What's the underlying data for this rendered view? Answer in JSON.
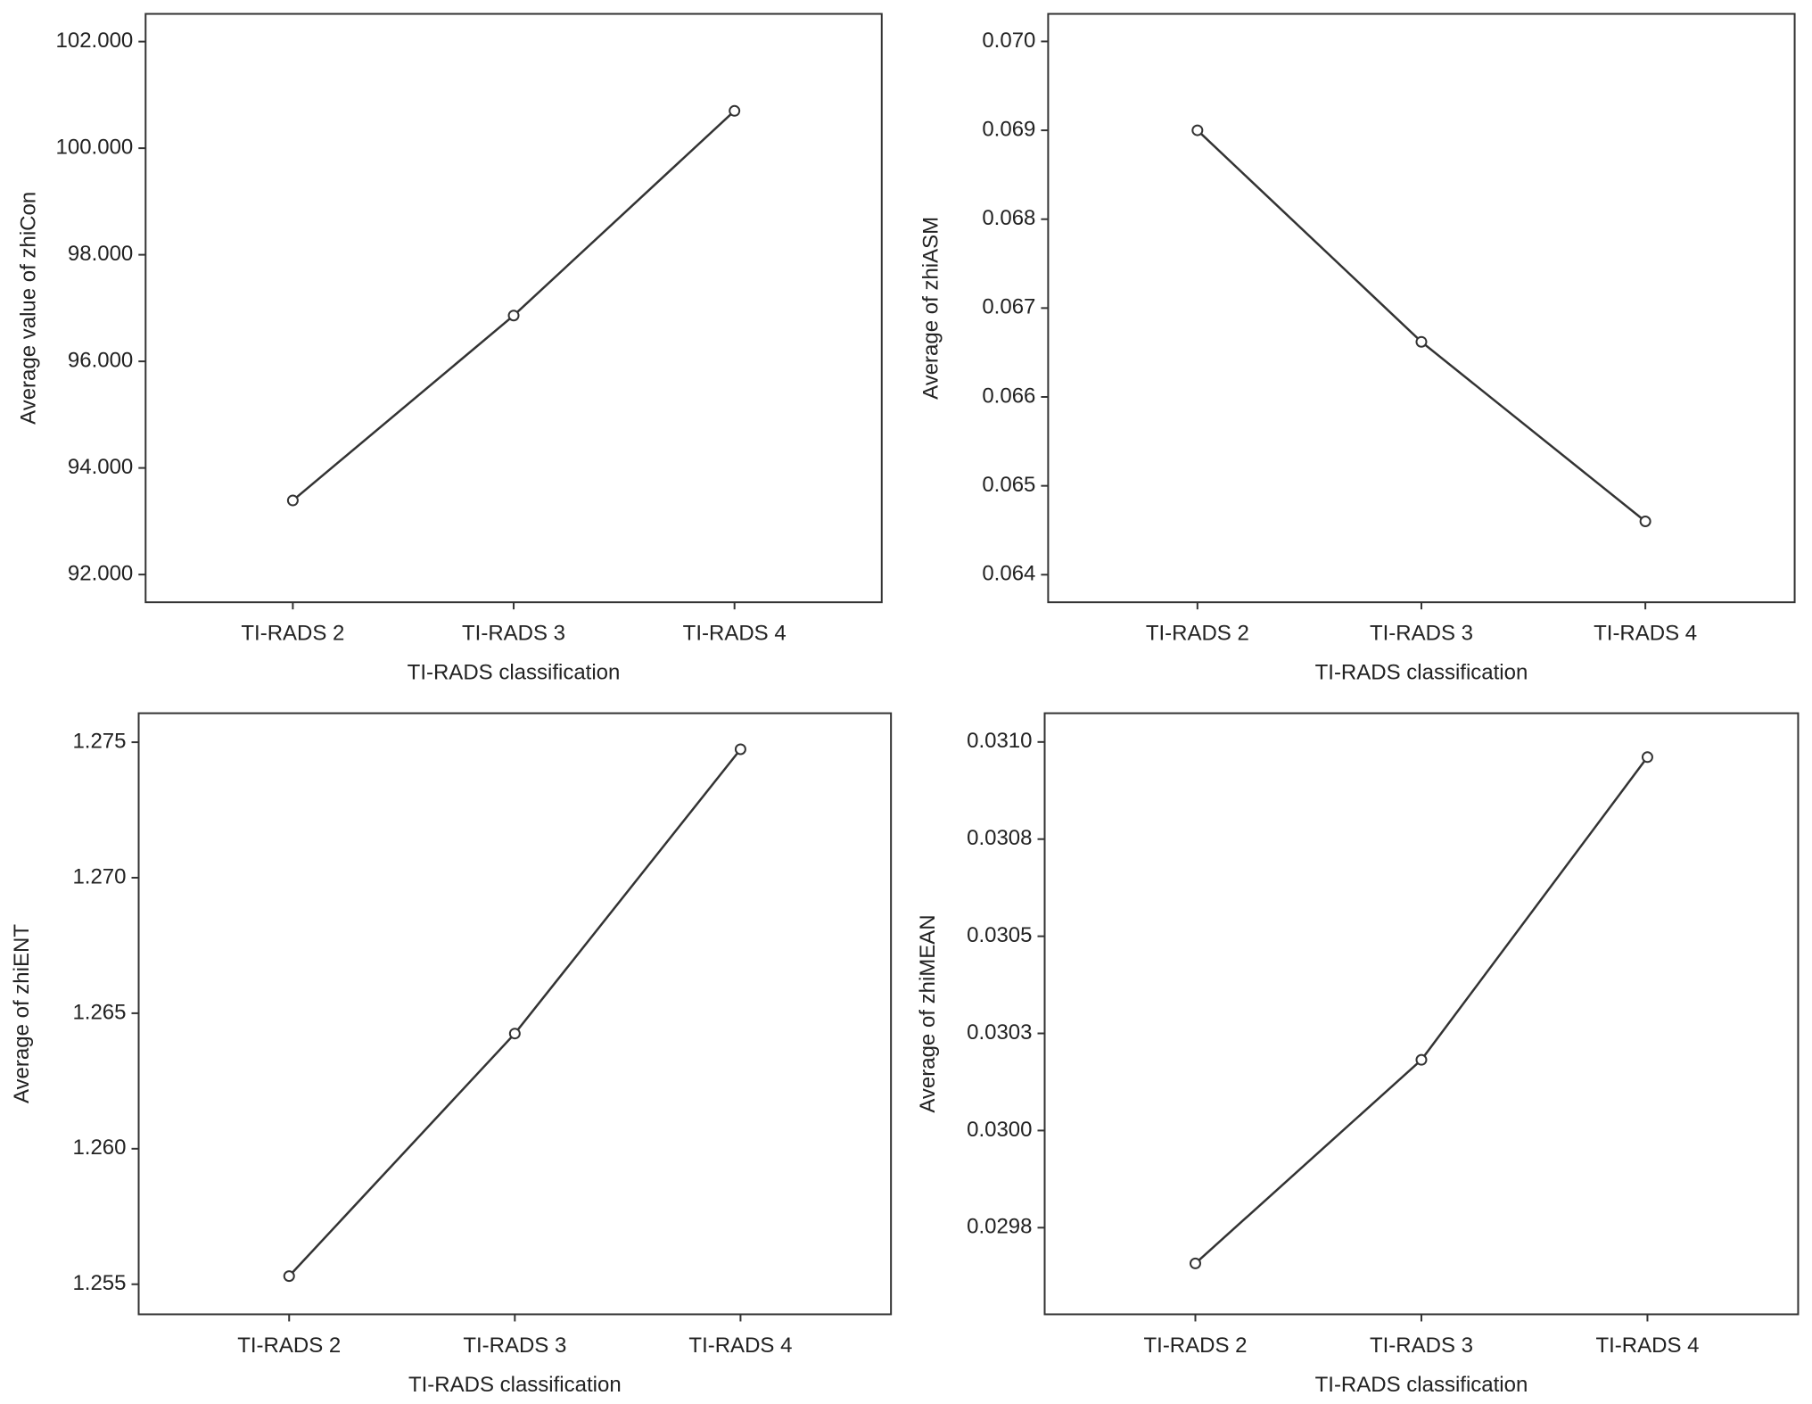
{
  "chart_data": [
    {
      "type": "line",
      "x_label": "TI-RADS classification",
      "y_label": "Average value of zhiCon",
      "categories": [
        "TI-RADS 2",
        "TI-RADS 3",
        "TI-RADS 4"
      ],
      "values": [
        93.39,
        96.86,
        100.7
      ],
      "color": "#333333",
      "ylim": [
        91.48,
        102.52
      ],
      "yticks": [
        {
          "value": 92,
          "label": "92.000"
        },
        {
          "value": 94,
          "label": "94.000"
        },
        {
          "value": 96,
          "label": "96.000"
        },
        {
          "value": 98,
          "label": "98.000"
        },
        {
          "value": 100,
          "label": "100.000"
        },
        {
          "value": 102,
          "label": "102.000"
        }
      ]
    },
    {
      "type": "line",
      "x_label": "TI-RADS classification",
      "y_label": "Average of zhiASM",
      "categories": [
        "TI-RADS 2",
        "TI-RADS 3",
        "TI-RADS 4"
      ],
      "values": [
        0.069,
        0.06662,
        0.0646
      ],
      "color": "#333333",
      "ylim": [
        0.06369,
        0.07031
      ],
      "yticks": [
        0.064,
        0.065,
        0.066,
        0.067,
        0.068,
        0.069,
        {
          "value": 0.07,
          "label": "0.070"
        }
      ]
    },
    {
      "type": "line",
      "x_label": "TI-RADS classification",
      "y_label": "Average of zhiENT",
      "categories": [
        "TI-RADS 2",
        "TI-RADS 3",
        "TI-RADS 4"
      ],
      "values": [
        1.2553,
        1.26425,
        1.27474
      ],
      "color": "#333333",
      "ylim": [
        1.25389,
        1.27607
      ],
      "yticks": [
        1.255,
        {
          "value": 1.26,
          "label": "1.260"
        },
        1.265,
        {
          "value": 1.27,
          "label": "1.270"
        },
        1.275
      ]
    },
    {
      "type": "line",
      "x_label": "TI-RADS classification",
      "y_label": "Average of zhiMEAN",
      "categories": [
        "TI-RADS 2",
        "TI-RADS 3",
        "TI-RADS 4"
      ],
      "values": [
        0.029658,
        0.030182,
        0.030961
      ],
      "color": "#333333",
      "ylim": [
        0.029527,
        0.031074
      ],
      "yticks": [
        {
          "value": 0.02975,
          "label": "0.0298"
        },
        {
          "value": 0.03,
          "label": "0.0300"
        },
        {
          "value": 0.03025,
          "label": "0.0303"
        },
        {
          "value": 0.0305,
          "label": "0.0305"
        },
        {
          "value": 0.03075,
          "label": "0.0308"
        },
        {
          "value": 0.031,
          "label": "0.0310"
        }
      ]
    }
  ]
}
